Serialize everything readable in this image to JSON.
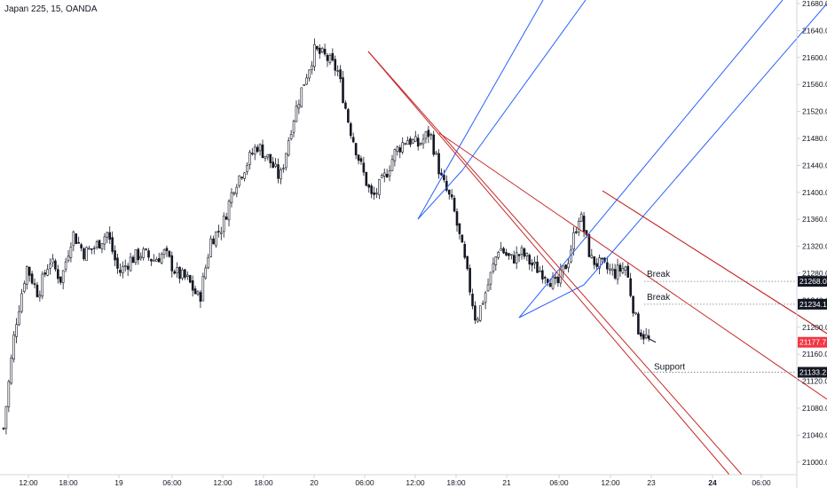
{
  "header": {
    "title": "Japan 225, 15, OANDA"
  },
  "colors": {
    "candle": "#131722",
    "channel_blue": "#2962ff",
    "channel_red": "#c62828",
    "last_price_badge": "#f23645",
    "level_badge": "#131722",
    "dotted_line": "#787b86",
    "axis_line": "#d1d4dc"
  },
  "chart_data": {
    "type": "candlestick",
    "y_axis": {
      "min": 20980,
      "max": 21680,
      "ticks": [
        "21000.0",
        "21040.0",
        "21080.0",
        "21120.0",
        "21160.0",
        "21200.0",
        "21240.0",
        "21280.0",
        "21320.0",
        "21360.0",
        "21400.0",
        "21440.0",
        "21480.0",
        "21520.0",
        "21560.0",
        "21600.0",
        "21640.0",
        "21680.0"
      ]
    },
    "x_axis": {
      "ticks": [
        {
          "label": "12:00",
          "bold": false
        },
        {
          "label": "18:00",
          "bold": false
        },
        {
          "label": "19",
          "bold": false
        },
        {
          "label": "06:00",
          "bold": false
        },
        {
          "label": "12:00",
          "bold": false
        },
        {
          "label": "18:00",
          "bold": false
        },
        {
          "label": "20",
          "bold": false
        },
        {
          "label": "06:00",
          "bold": false
        },
        {
          "label": "12:00",
          "bold": false
        },
        {
          "label": "18:00",
          "bold": false
        },
        {
          "label": "21",
          "bold": false
        },
        {
          "label": "06:00",
          "bold": false
        },
        {
          "label": "12:00",
          "bold": false
        },
        {
          "label": "23",
          "bold": false
        },
        {
          "label": "24",
          "bold": true
        },
        {
          "label": "06:00",
          "bold": false
        }
      ]
    },
    "price_path": [
      [
        21050,
        21020
      ],
      [
        21200,
        21190
      ],
      [
        21290,
        21260
      ],
      [
        21250,
        21220
      ],
      [
        21300,
        21280
      ],
      [
        21270,
        21250
      ],
      [
        21340,
        21320
      ],
      [
        21310,
        21290
      ],
      [
        21320,
        21300
      ],
      [
        21340,
        21330
      ],
      [
        21280,
        21290
      ],
      [
        21300,
        21310
      ],
      [
        21310,
        21320
      ],
      [
        21300,
        21310
      ],
      [
        21310,
        21300
      ],
      [
        21280,
        21290
      ],
      [
        21270,
        21280
      ],
      [
        21240,
        21260
      ],
      [
        21330,
        21320
      ],
      [
        21350,
        21340
      ],
      [
        21410,
        21400
      ],
      [
        21440,
        21430
      ],
      [
        21470,
        21460
      ],
      [
        21450,
        21440
      ],
      [
        21420,
        21430
      ],
      [
        21500,
        21510
      ],
      [
        21560,
        21570
      ],
      [
        21610,
        21600
      ],
      [
        21600,
        21590
      ],
      [
        21580,
        21570
      ],
      [
        21500,
        21490
      ],
      [
        21440,
        21430
      ],
      [
        21390,
        21370
      ],
      [
        21420,
        21410
      ],
      [
        21460,
        21450
      ],
      [
        21480,
        21470
      ],
      [
        21470,
        21460
      ],
      [
        21490,
        21480
      ],
      [
        21420,
        21410
      ],
      [
        21380,
        21370
      ],
      [
        21300,
        21290
      ],
      [
        21210,
        21200
      ],
      [
        21260,
        21250
      ],
      [
        21320,
        21310
      ],
      [
        21300,
        21290
      ],
      [
        21310,
        21320
      ],
      [
        21290,
        21300
      ],
      [
        21280,
        21270
      ],
      [
        21260,
        21250
      ],
      [
        21300,
        21310
      ],
      [
        21370,
        21360
      ],
      [
        21300,
        21310
      ],
      [
        21290,
        21280
      ],
      [
        21280,
        21290
      ],
      [
        21290,
        21280
      ],
      [
        21200,
        21190
      ],
      [
        21180,
        21177.7
      ]
    ],
    "price_labels": [
      {
        "value": 21268.0,
        "label": "21268.0",
        "style": "level"
      },
      {
        "value": 21234.1,
        "label": "21234.1",
        "style": "level"
      },
      {
        "value": 21177.7,
        "label": "21177.7",
        "style": "last"
      },
      {
        "value": 21133.2,
        "label": "21133.2",
        "style": "level"
      }
    ],
    "annotations": [
      {
        "text": "Break",
        "price": 21268.0
      },
      {
        "text": "Break",
        "price": 21234.1
      },
      {
        "text": "Support",
        "price": 21133.2
      }
    ]
  }
}
